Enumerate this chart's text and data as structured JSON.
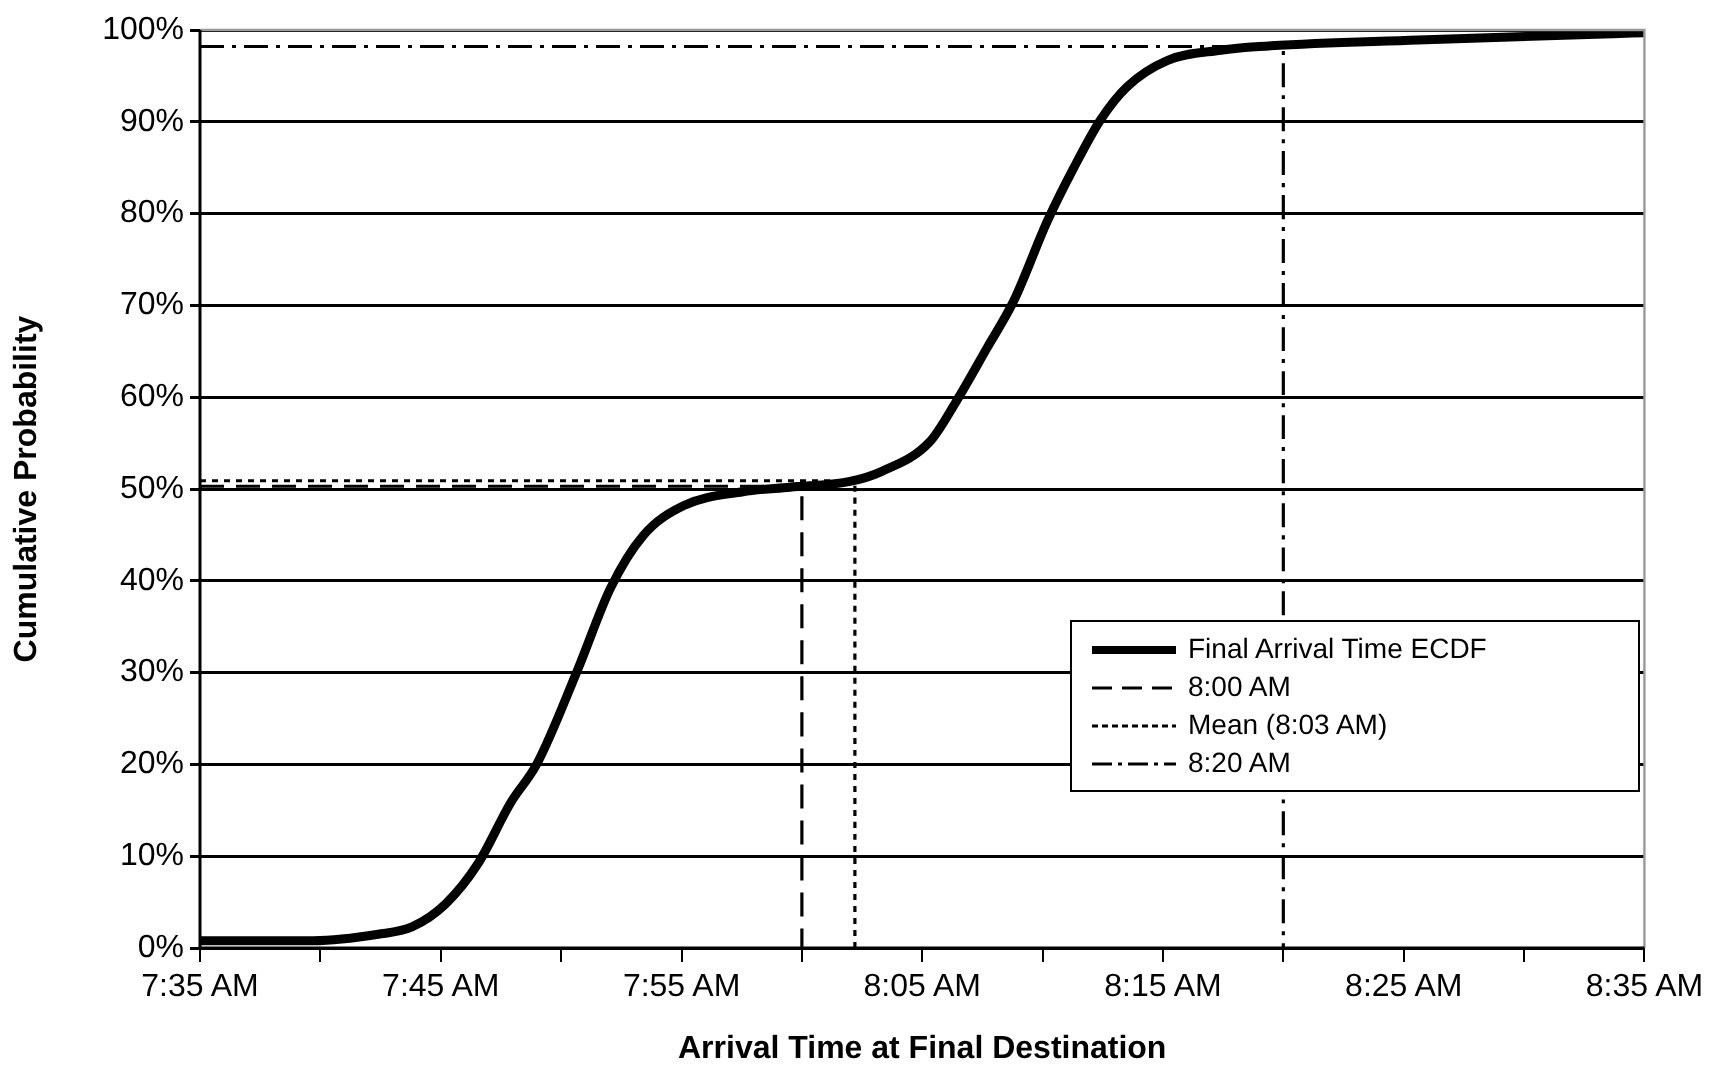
{
  "chart_data": {
    "type": "line",
    "xlabel": "Arrival Time at Final Destination",
    "ylabel": "Cumulative Probability",
    "xlim": [
      7.5833,
      8.5833
    ],
    "xticks": [
      {
        "value": 7.5833,
        "label": "7:35 AM"
      },
      {
        "value": 7.6667,
        "label": null
      },
      {
        "value": 7.75,
        "label": "7:45 AM"
      },
      {
        "value": 7.8333,
        "label": null
      },
      {
        "value": 7.9167,
        "label": "7:55 AM"
      },
      {
        "value": 8,
        "label": null
      },
      {
        "value": 8.0833,
        "label": "8:05 AM"
      },
      {
        "value": 8.1667,
        "label": null
      },
      {
        "value": 8.25,
        "label": "8:15 AM"
      },
      {
        "value": 8.3333,
        "label": null
      },
      {
        "value": 8.4167,
        "label": "8:25 AM"
      },
      {
        "value": 8.5,
        "label": null
      },
      {
        "value": 8.5833,
        "label": "8:35 AM"
      }
    ],
    "ylim": [
      0,
      100
    ],
    "yticks": [
      {
        "value": 0,
        "label": "0%"
      },
      {
        "value": 10,
        "label": "10%"
      },
      {
        "value": 20,
        "label": "20%"
      },
      {
        "value": 30,
        "label": "30%"
      },
      {
        "value": 40,
        "label": "40%"
      },
      {
        "value": 50,
        "label": "50%"
      },
      {
        "value": 60,
        "label": "60%"
      },
      {
        "value": 70,
        "label": "70%"
      },
      {
        "value": 80,
        "label": "80%"
      },
      {
        "value": 90,
        "label": "90%"
      },
      {
        "value": 100,
        "label": "100%"
      }
    ],
    "grid": "y",
    "legend": "bottom right",
    "marker": "none",
    "series": [
      {
        "name": "Final Arrival Time ECDF",
        "color": "#000000",
        "line_style": "solid",
        "x": [
          7.5833,
          7.6617,
          7.7067,
          7.73,
          7.7533,
          7.7758,
          7.7983,
          7.8167,
          7.845,
          7.8675,
          7.89,
          7.9183,
          7.9592,
          7.9917,
          8.0325,
          8.055,
          8.0883,
          8.1067,
          8.1283,
          8.1467,
          8.17,
          8.1883,
          8.2067,
          8.225,
          8.2533,
          8.29,
          8.3167,
          8.4267,
          8.5617,
          8.5833
        ],
        "values": [
          0.8,
          0.8,
          1.5,
          2.3,
          4.8,
          9.2,
          15.8,
          20.1,
          30.4,
          39.2,
          44.9,
          48.2,
          49.7,
          50.2,
          50.8,
          51.9,
          55.1,
          59.5,
          65.4,
          70.5,
          79.2,
          85.0,
          90.2,
          93.8,
          96.7,
          97.8,
          98.2,
          98.9,
          99.6,
          99.7
        ]
      },
      {
        "name": "8:00 AM",
        "color": "#000000",
        "line_style": "dashed",
        "x": [
          7.5833,
          8,
          8
        ],
        "values": [
          50.3,
          50.3,
          0
        ]
      },
      {
        "name": "Mean (8:03 AM)",
        "color": "#000000",
        "line_style": "dotted",
        "x": [
          7.5833,
          8.0367,
          8.0367
        ],
        "values": [
          50.9,
          50.9,
          0
        ]
      },
      {
        "name": "8:20 AM",
        "color": "#000000",
        "line_style": "dashdot",
        "x": [
          7.5833,
          8.3333,
          8.3333
        ],
        "values": [
          98.2,
          98.2,
          0
        ]
      }
    ]
  }
}
